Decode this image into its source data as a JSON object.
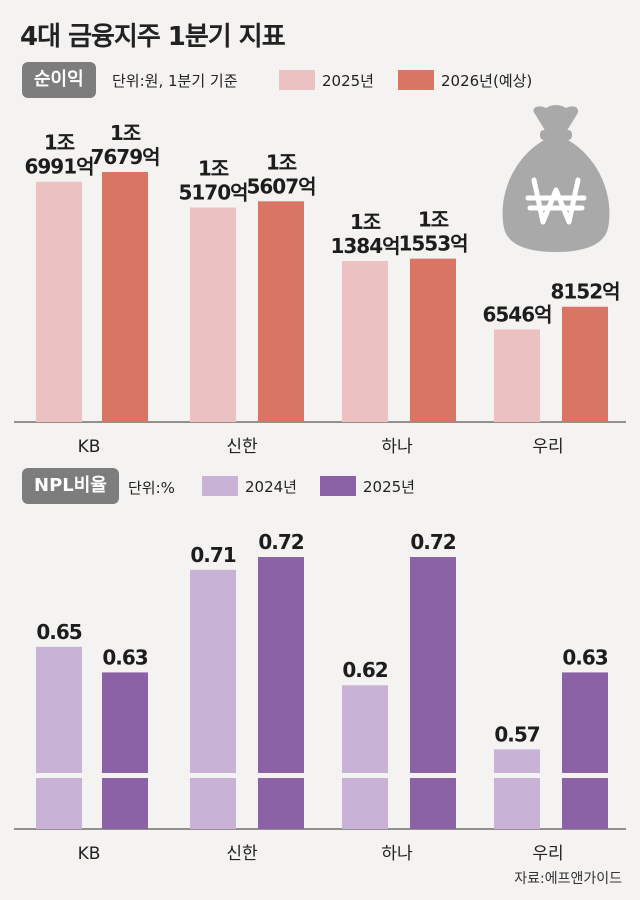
{
  "title": "4대 금융지주 1분기 지표",
  "source": "자료:에프앤가이드",
  "chart_data": [
    {
      "type": "bar",
      "badge": "순이익",
      "unit": "단위:원, 1분기 기준",
      "categories": [
        "KB",
        "신한",
        "하나",
        "우리"
      ],
      "series": [
        {
          "name": "2025년",
          "color": "#ecc1c1",
          "values": [
            16991,
            15170,
            11384,
            6546
          ],
          "labels": [
            [
              "1조",
              "6991억"
            ],
            [
              "1조",
              "5170억"
            ],
            [
              "1조",
              "1384억"
            ],
            [
              "6546억"
            ]
          ]
        },
        {
          "name": "2026년(예상)",
          "color": "#d87565",
          "values": [
            17679,
            15607,
            11553,
            8152
          ],
          "labels": [
            [
              "1조",
              "7679억"
            ],
            [
              "1조",
              "5607억"
            ],
            [
              "1조",
              "1553억"
            ],
            [
              "8152억"
            ]
          ]
        }
      ],
      "icon": "money-bag-won-icon"
    },
    {
      "type": "bar",
      "badge": "NPL비율",
      "unit": "단위:%",
      "categories": [
        "KB",
        "신한",
        "하나",
        "우리"
      ],
      "axis_break": true,
      "series": [
        {
          "name": "2024년",
          "color": "#c8b3d6",
          "values": [
            0.65,
            0.71,
            0.62,
            0.57
          ],
          "labels": [
            [
              "0.65"
            ],
            [
              "0.71"
            ],
            [
              "0.62"
            ],
            [
              "0.57"
            ]
          ]
        },
        {
          "name": "2025년",
          "color": "#8a62a5",
          "values": [
            0.63,
            0.72,
            0.72,
            0.63
          ],
          "labels": [
            [
              "0.63"
            ],
            [
              "0.72"
            ],
            [
              "0.72"
            ],
            [
              "0.63"
            ]
          ]
        }
      ]
    }
  ]
}
